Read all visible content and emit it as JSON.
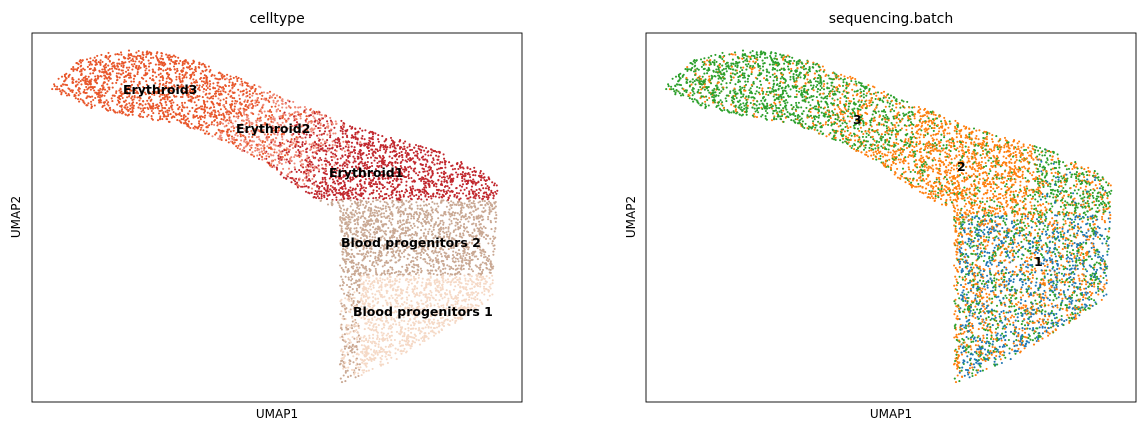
{
  "chart_data": [
    {
      "type": "scatter",
      "title": "celltype",
      "xlabel": "UMAP1",
      "ylabel": "UMAP2",
      "ticks": "none",
      "grid": false,
      "legend": "on-data",
      "groups": [
        {
          "name": "Erythroid3",
          "color": "#e8562a"
        },
        {
          "name": "Erythroid2",
          "color": "#ef8a78"
        },
        {
          "name": "Erythroid1",
          "color": "#c1272d"
        },
        {
          "name": "Blood progenitors 2",
          "color": "#c9a893"
        },
        {
          "name": "Blood progenitors 1",
          "color": "#f5d9c6"
        }
      ]
    },
    {
      "type": "scatter",
      "title": "sequencing.batch",
      "xlabel": "UMAP1",
      "ylabel": "UMAP2",
      "ticks": "none",
      "grid": false,
      "legend": "on-data",
      "groups": [
        {
          "name": "3",
          "color": "#2ca02c"
        },
        {
          "name": "2",
          "color": "#ff7f0e"
        },
        {
          "name": "1",
          "color": "#1f77b4"
        }
      ]
    }
  ]
}
